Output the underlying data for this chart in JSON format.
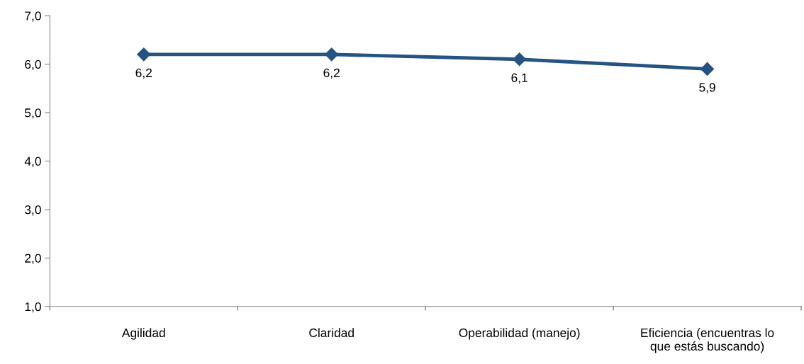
{
  "chart_data": {
    "type": "line",
    "categories": [
      "Agilidad",
      "Claridad",
      "Operabilidad (manejo)",
      "Eficiencia (encuentras lo que estás buscando)"
    ],
    "series": [
      {
        "color": "#255483",
        "values": [
          6.2,
          6.2,
          6.1,
          5.9
        ],
        "value_labels": [
          "6,2",
          "6,2",
          "6,1",
          "5,9"
        ]
      }
    ],
    "ylim": [
      1,
      7
    ],
    "yticks": [
      {
        "value": 1,
        "label": "1,0"
      },
      {
        "value": 2,
        "label": "2,0"
      },
      {
        "value": 3,
        "label": "3,0"
      },
      {
        "value": 4,
        "label": "4,0"
      },
      {
        "value": 5,
        "label": "5,0"
      },
      {
        "value": 6,
        "label": "6,0"
      },
      {
        "value": 7,
        "label": "7,0"
      }
    ],
    "marker": "diamond",
    "line_style": "solid",
    "grid": false,
    "legend": false
  }
}
